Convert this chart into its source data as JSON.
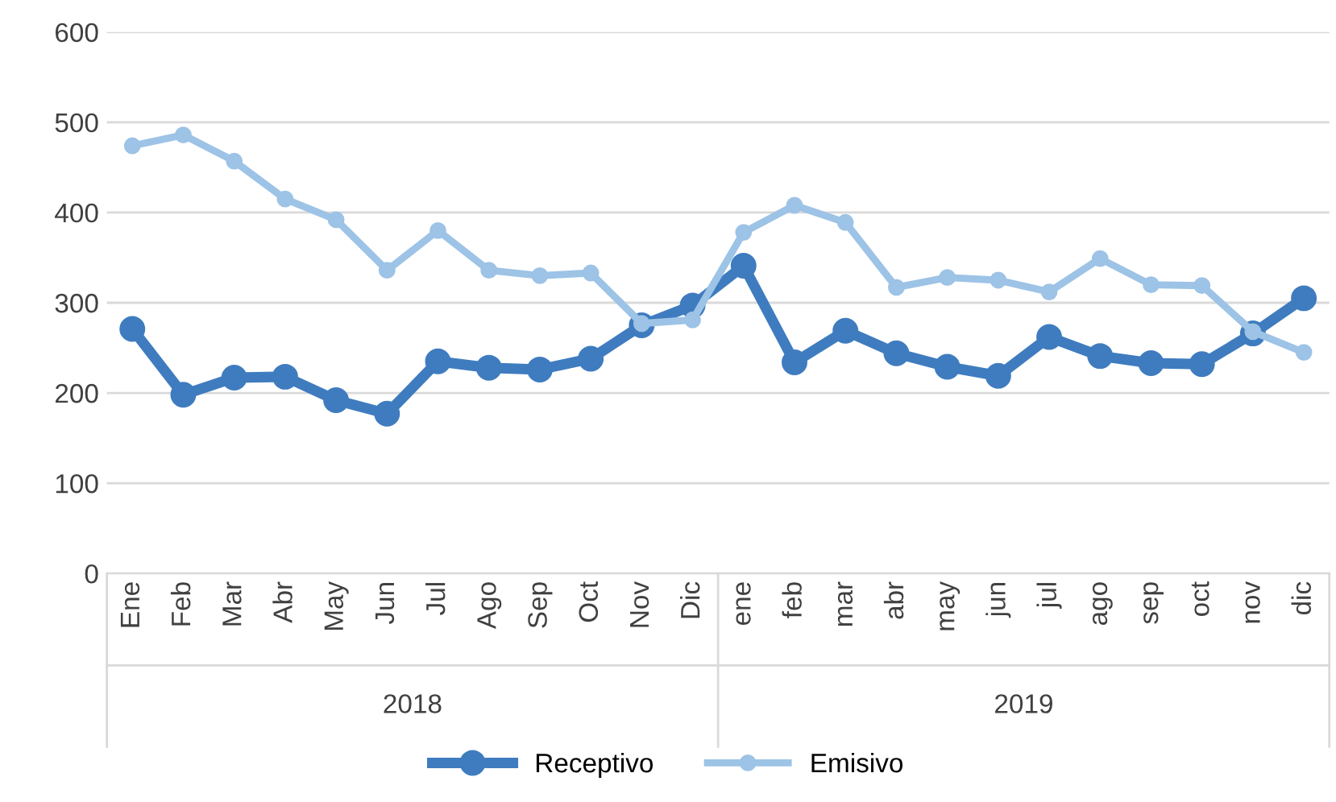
{
  "chart_data": {
    "type": "line",
    "categories": [
      "Ene",
      "Feb",
      "Mar",
      "Abr",
      "May",
      "Jun",
      "Jul",
      "Ago",
      "Sep",
      "Oct",
      "Nov",
      "Dic",
      "ene",
      "feb",
      "mar",
      "abr",
      "may",
      "jun",
      "jul",
      "ago",
      "sep",
      "oct",
      "nov",
      "dic"
    ],
    "series": [
      {
        "name": "Receptivo",
        "color": "#3f7cbf",
        "values": [
          271,
          198,
          217,
          218,
          192,
          177,
          235,
          228,
          226,
          238,
          275,
          297,
          341,
          234,
          269,
          244,
          229,
          219,
          262,
          241,
          233,
          232,
          266,
          305
        ]
      },
      {
        "name": "Emisivo",
        "color": "#9dc3e6",
        "values": [
          474,
          486,
          457,
          415,
          392,
          336,
          380,
          336,
          330,
          333,
          277,
          281,
          378,
          408,
          389,
          317,
          328,
          325,
          312,
          349,
          320,
          319,
          268,
          245
        ]
      }
    ],
    "annotations": [
      "2018",
      "2019"
    ],
    "ylim": [
      0,
      600
    ],
    "yticks": [
      0,
      100,
      200,
      300,
      400,
      500,
      600
    ],
    "grid": "y",
    "legend": "bottom",
    "marker": "circle",
    "line_style": "solid"
  }
}
